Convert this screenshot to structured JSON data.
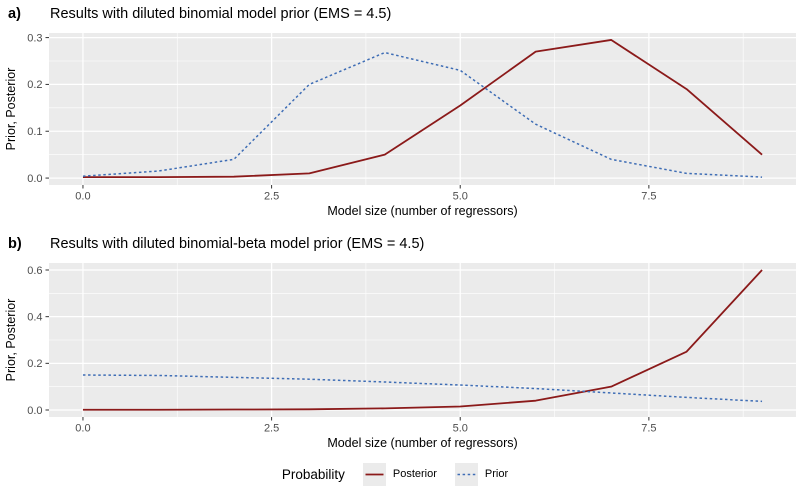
{
  "figure": {
    "background": "#ffffff",
    "panel_background": "#ebebeb",
    "grid_color": "#ffffff",
    "tick_color": "#333333",
    "tick_label_color": "#4d4d4d",
    "axis_title_color": "#000000"
  },
  "legend": {
    "title": "Probability",
    "key_background": "#ebebeb",
    "items": [
      {
        "label": "Posterior",
        "line": "solid",
        "color": "#8b1a1a"
      },
      {
        "label": "Prior",
        "line": "dashed",
        "color": "#3e6db5"
      }
    ]
  },
  "chart_data": [
    {
      "type": "line",
      "panel_tag": "a)",
      "title": "Results with diluted binomial model prior (EMS = 4.5)",
      "xlabel": "Model size (number of regressors)",
      "ylabel": "Prior, Posterior",
      "x": [
        0,
        1,
        2,
        3,
        4,
        5,
        6,
        7,
        8,
        9
      ],
      "series": [
        {
          "name": "Posterior",
          "style": "solid",
          "color": "#8b1a1a",
          "values": [
            0.002,
            0.002,
            0.003,
            0.01,
            0.05,
            0.155,
            0.27,
            0.295,
            0.19,
            0.05
          ]
        },
        {
          "name": "Prior",
          "style": "dashed",
          "color": "#3e6db5",
          "values": [
            0.004,
            0.015,
            0.04,
            0.2,
            0.268,
            0.23,
            0.115,
            0.04,
            0.01,
            0.002
          ]
        }
      ],
      "xlim": [
        -0.45,
        9.45
      ],
      "ylim": [
        -0.0148,
        0.3098
      ],
      "x_ticks": [
        0,
        2.5,
        5,
        7.5
      ],
      "x_tick_labels": [
        "0.0",
        "2.5",
        "5.0",
        "7.5"
      ],
      "x_minor": [
        1.25,
        3.75,
        6.25,
        8.75
      ],
      "y_ticks": [
        0,
        0.1,
        0.2,
        0.3
      ],
      "y_tick_labels": [
        "0.0",
        "0.1",
        "0.2",
        "0.3"
      ],
      "y_minor": [
        0.05,
        0.15,
        0.25
      ],
      "grid": true,
      "legend_position": "bottom"
    },
    {
      "type": "line",
      "panel_tag": "b)",
      "title": "Results with diluted binomial-beta model prior (EMS = 4.5)",
      "xlabel": "Model size (number of regressors)",
      "ylabel": "Prior, Posterior",
      "x": [
        0,
        1,
        2,
        3,
        4,
        5,
        6,
        7,
        8,
        9
      ],
      "series": [
        {
          "name": "Posterior",
          "style": "solid",
          "color": "#8b1a1a",
          "values": [
            0.001,
            0.001,
            0.002,
            0.003,
            0.007,
            0.015,
            0.04,
            0.1,
            0.25,
            0.6
          ]
        },
        {
          "name": "Prior",
          "style": "dashed",
          "color": "#3e6db5",
          "values": [
            0.15,
            0.148,
            0.14,
            0.132,
            0.12,
            0.107,
            0.092,
            0.073,
            0.054,
            0.037
          ]
        }
      ],
      "xlim": [
        -0.45,
        9.45
      ],
      "ylim": [
        -0.03,
        0.63
      ],
      "x_ticks": [
        0,
        2.5,
        5,
        7.5
      ],
      "x_tick_labels": [
        "0.0",
        "2.5",
        "5.0",
        "7.5"
      ],
      "x_minor": [
        1.25,
        3.75,
        6.25,
        8.75
      ],
      "y_ticks": [
        0,
        0.2,
        0.4,
        0.6
      ],
      "y_tick_labels": [
        "0.0",
        "0.2",
        "0.4",
        "0.6"
      ],
      "y_minor": [
        0.1,
        0.3,
        0.5
      ],
      "grid": true,
      "legend_position": "bottom"
    }
  ]
}
